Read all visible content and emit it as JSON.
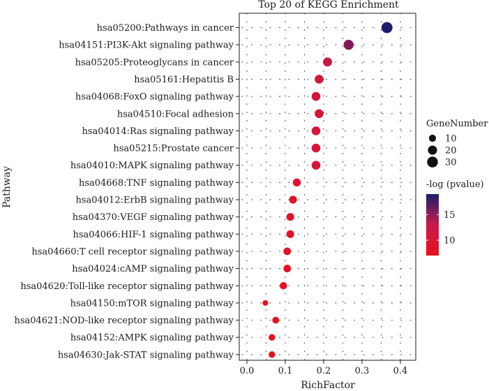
{
  "chart_data": {
    "type": "scatter",
    "title": "Top 20 of KEGG Enrichment",
    "xlabel": "RichFactor",
    "ylabel": "Pathway",
    "xlim": [
      -0.02,
      0.44
    ],
    "xticks": [
      "0.0",
      "0.1",
      "0.2",
      "0.3",
      "0.4"
    ],
    "xtick_values": [
      0.0,
      0.1,
      0.2,
      0.3,
      0.4
    ],
    "grid": true,
    "legend_position": "right",
    "size_legend": {
      "title": "GeneNumber",
      "labels": [
        "10",
        "20",
        "30"
      ],
      "values": [
        10,
        20,
        30
      ]
    },
    "color_legend": {
      "title": "-log (pvalue)",
      "labels": [
        "10",
        "15"
      ],
      "values": [
        10,
        15
      ],
      "range": [
        7,
        19
      ],
      "low_color": "#e8101e",
      "mid_color": "#c81a4a",
      "high_color": "#1c1d6b"
    },
    "points": [
      {
        "pathway": "hsa05200:Pathways in cancer",
        "rich_factor": 0.365,
        "gene_number": 32,
        "neg_log_p": 19.0
      },
      {
        "pathway": "hsa04151:PI3K-Akt signaling pathway",
        "rich_factor": 0.265,
        "gene_number": 25,
        "neg_log_p": 15.5
      },
      {
        "pathway": "hsa05205:Proteoglycans in cancer",
        "rich_factor": 0.21,
        "gene_number": 19,
        "neg_log_p": 12.5
      },
      {
        "pathway": "hsa05161:Hepatitis B",
        "rich_factor": 0.188,
        "gene_number": 18,
        "neg_log_p": 11.0
      },
      {
        "pathway": "hsa04068:FoxO signaling pathway",
        "rich_factor": 0.18,
        "gene_number": 18,
        "neg_log_p": 10.5
      },
      {
        "pathway": "hsa04510:Focal adhesion",
        "rich_factor": 0.188,
        "gene_number": 18,
        "neg_log_p": 10.5
      },
      {
        "pathway": "hsa04014:Ras signaling pathway",
        "rich_factor": 0.18,
        "gene_number": 18,
        "neg_log_p": 10.5
      },
      {
        "pathway": "hsa05215:Prostate cancer",
        "rich_factor": 0.18,
        "gene_number": 18,
        "neg_log_p": 10.5
      },
      {
        "pathway": "hsa04010:MAPK signaling pathway",
        "rich_factor": 0.18,
        "gene_number": 18,
        "neg_log_p": 10.0
      },
      {
        "pathway": "hsa04668:TNF signaling pathway",
        "rich_factor": 0.13,
        "gene_number": 14,
        "neg_log_p": 9.0
      },
      {
        "pathway": "hsa04012:ErbB signaling pathway",
        "rich_factor": 0.12,
        "gene_number": 13,
        "neg_log_p": 8.5
      },
      {
        "pathway": "hsa04370:VEGF signaling pathway",
        "rich_factor": 0.113,
        "gene_number": 13,
        "neg_log_p": 8.5
      },
      {
        "pathway": "hsa04066:HIF-1 signaling pathway",
        "rich_factor": 0.113,
        "gene_number": 13,
        "neg_log_p": 8.5
      },
      {
        "pathway": "hsa04660:T cell receptor signaling pathway",
        "rich_factor": 0.105,
        "gene_number": 12,
        "neg_log_p": 8.0
      },
      {
        "pathway": "hsa04024:cAMP signaling pathway",
        "rich_factor": 0.105,
        "gene_number": 12,
        "neg_log_p": 8.0
      },
      {
        "pathway": "hsa04620:Toll-like receptor signaling pathway",
        "rich_factor": 0.095,
        "gene_number": 11,
        "neg_log_p": 7.5
      },
      {
        "pathway": "hsa04150:mTOR signaling pathway",
        "rich_factor": 0.048,
        "gene_number": 5,
        "neg_log_p": 7.0
      },
      {
        "pathway": "hsa04621:NOD-like receptor signaling pathway",
        "rich_factor": 0.075,
        "gene_number": 9,
        "neg_log_p": 7.0
      },
      {
        "pathway": "hsa04152:AMPK signaling pathway",
        "rich_factor": 0.065,
        "gene_number": 8,
        "neg_log_p": 7.0
      },
      {
        "pathway": "hsa04630:Jak-STAT signaling pathway",
        "rich_factor": 0.065,
        "gene_number": 8,
        "neg_log_p": 7.0
      }
    ]
  }
}
